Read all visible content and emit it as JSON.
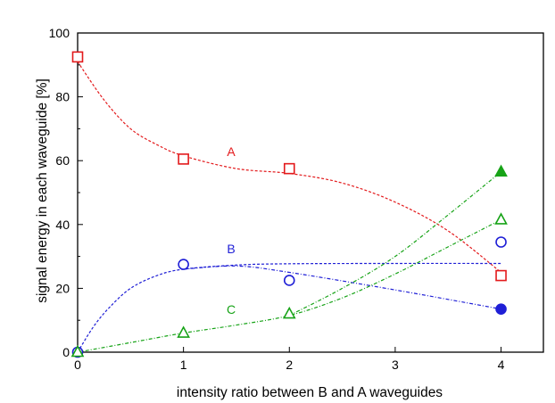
{
  "chart_data": {
    "type": "scatter",
    "xlabel": "intensity ratio between B and A waveguides",
    "ylabel": "signal energy in each waveguide [%]",
    "xlim": [
      0,
      4.4
    ],
    "ylim": [
      0,
      100
    ],
    "x_ticks": [
      0,
      1,
      2,
      3,
      4
    ],
    "y_ticks": [
      0,
      20,
      40,
      60,
      80,
      100
    ],
    "grid": false,
    "legend": "none",
    "series": [
      {
        "name": "A",
        "color": "#e31a1c",
        "marker": "square-open",
        "points": [
          {
            "x": 0,
            "y": 92.5
          },
          {
            "x": 1,
            "y": 60.5
          },
          {
            "x": 2,
            "y": 57.5
          },
          {
            "x": 4,
            "y": 24
          }
        ],
        "fit": [
          {
            "x": 0,
            "y": 91
          },
          {
            "x": 0.25,
            "y": 79
          },
          {
            "x": 0.5,
            "y": 70
          },
          {
            "x": 0.75,
            "y": 65
          },
          {
            "x": 1,
            "y": 61.5
          },
          {
            "x": 1.5,
            "y": 57.5
          },
          {
            "x": 2,
            "y": 56
          },
          {
            "x": 2.5,
            "y": 53
          },
          {
            "x": 3,
            "y": 47
          },
          {
            "x": 3.5,
            "y": 38
          },
          {
            "x": 4,
            "y": 25
          }
        ],
        "label": {
          "text": "A",
          "x": 1.45,
          "y": 61.5
        }
      },
      {
        "name": "B",
        "color": "#1f1fd6",
        "marker": "circle-open",
        "points": [
          {
            "x": 0,
            "y": 0
          },
          {
            "x": 1,
            "y": 27.5
          },
          {
            "x": 2,
            "y": 22.5
          },
          {
            "x": 4,
            "y": 34.5
          }
        ],
        "extra_points": [
          {
            "x": 4,
            "y": 13.5,
            "marker": "circle-filled"
          }
        ],
        "fit": [
          {
            "x": 0,
            "y": 0
          },
          {
            "x": 0.15,
            "y": 8
          },
          {
            "x": 0.3,
            "y": 14
          },
          {
            "x": 0.5,
            "y": 20
          },
          {
            "x": 0.75,
            "y": 24
          },
          {
            "x": 1,
            "y": 26
          },
          {
            "x": 1.5,
            "y": 27.3
          },
          {
            "x": 2,
            "y": 27.7
          },
          {
            "x": 3,
            "y": 27.8
          },
          {
            "x": 4,
            "y": 27.8
          }
        ],
        "fit2": [
          {
            "x": 1,
            "y": 26
          },
          {
            "x": 1.5,
            "y": 27
          },
          {
            "x": 2,
            "y": 25
          },
          {
            "x": 3,
            "y": 19.5
          },
          {
            "x": 4,
            "y": 13.5
          }
        ],
        "label": {
          "text": "B",
          "x": 1.45,
          "y": 31
        }
      },
      {
        "name": "C",
        "color": "#17a317",
        "marker": "triangle-open",
        "points": [
          {
            "x": 0,
            "y": 0
          },
          {
            "x": 1,
            "y": 6
          },
          {
            "x": 2,
            "y": 12
          },
          {
            "x": 4,
            "y": 41.5
          }
        ],
        "extra_points": [
          {
            "x": 4,
            "y": 56.5,
            "marker": "triangle-filled"
          }
        ],
        "fit": [
          {
            "x": 0,
            "y": 0
          },
          {
            "x": 0.5,
            "y": 3
          },
          {
            "x": 1,
            "y": 6
          },
          {
            "x": 1.5,
            "y": 8.5
          },
          {
            "x": 2,
            "y": 11.5
          },
          {
            "x": 2.5,
            "y": 17
          },
          {
            "x": 3,
            "y": 24.5
          },
          {
            "x": 3.5,
            "y": 33
          },
          {
            "x": 4,
            "y": 41.5
          }
        ],
        "fit2": [
          {
            "x": 2,
            "y": 11.5
          },
          {
            "x": 2.5,
            "y": 20
          },
          {
            "x": 3,
            "y": 30
          },
          {
            "x": 3.5,
            "y": 43
          },
          {
            "x": 4,
            "y": 56.5
          }
        ],
        "label": {
          "text": "C",
          "x": 1.45,
          "y": 12
        }
      }
    ]
  }
}
